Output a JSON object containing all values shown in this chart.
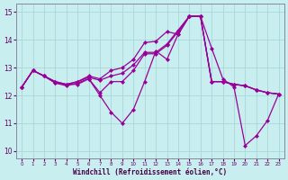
{
  "bg_color": "#c8eef0",
  "line_color": "#990099",
  "grid_color": "#a8d8d8",
  "xlabel": "Windchill (Refroidissement éolien,°C)",
  "xlim": [
    -0.5,
    23.5
  ],
  "ylim": [
    9.75,
    15.3
  ],
  "yticks": [
    10,
    11,
    12,
    13,
    14,
    15
  ],
  "xticks": [
    0,
    1,
    2,
    3,
    4,
    5,
    6,
    7,
    8,
    9,
    10,
    11,
    12,
    13,
    14,
    15,
    16,
    17,
    18,
    19,
    20,
    21,
    22,
    23
  ],
  "lines": [
    {
      "x": [
        0,
        1,
        2,
        3,
        4,
        5,
        6,
        7,
        8,
        9,
        10,
        11,
        12,
        13,
        14,
        15,
        16,
        17,
        18,
        19,
        20,
        21,
        22,
        23
      ],
      "y": [
        12.3,
        12.9,
        12.7,
        12.5,
        12.4,
        12.4,
        12.6,
        12.0,
        11.4,
        11.0,
        11.5,
        12.5,
        13.6,
        13.3,
        14.2,
        14.85,
        14.85,
        13.7,
        12.6,
        12.3,
        10.2,
        10.55,
        11.1,
        12.05
      ]
    },
    {
      "x": [
        0,
        1,
        2,
        3,
        4,
        5,
        6,
        7,
        8,
        9,
        10,
        11,
        12,
        13,
        14,
        15,
        16,
        17,
        18,
        19,
        20,
        21,
        22,
        23
      ],
      "y": [
        12.3,
        12.9,
        12.7,
        12.5,
        12.4,
        12.5,
        12.7,
        12.6,
        12.9,
        13.0,
        13.3,
        13.9,
        13.95,
        14.3,
        14.2,
        14.85,
        14.85,
        12.5,
        12.5,
        12.4,
        12.35,
        12.2,
        12.1,
        12.05
      ]
    },
    {
      "x": [
        0,
        1,
        2,
        3,
        4,
        5,
        6,
        7,
        8,
        9,
        10,
        11,
        12,
        13,
        14,
        15,
        16,
        17,
        18,
        19,
        20,
        21,
        22,
        23
      ],
      "y": [
        12.3,
        12.9,
        12.7,
        12.45,
        12.4,
        12.5,
        12.65,
        12.55,
        12.7,
        12.8,
        13.1,
        13.55,
        13.55,
        13.85,
        14.35,
        14.85,
        14.85,
        12.5,
        12.5,
        12.4,
        12.35,
        12.2,
        12.1,
        12.05
      ]
    },
    {
      "x": [
        0,
        1,
        2,
        3,
        4,
        5,
        6,
        7,
        8,
        9,
        10,
        11,
        12,
        13,
        14,
        15,
        16,
        17,
        18,
        19,
        20,
        21,
        22,
        23
      ],
      "y": [
        12.3,
        12.9,
        12.7,
        12.45,
        12.35,
        12.45,
        12.6,
        12.1,
        12.5,
        12.5,
        12.9,
        13.5,
        13.5,
        13.8,
        14.3,
        14.85,
        14.85,
        12.5,
        12.5,
        12.4,
        12.35,
        12.2,
        12.1,
        12.05
      ]
    }
  ]
}
